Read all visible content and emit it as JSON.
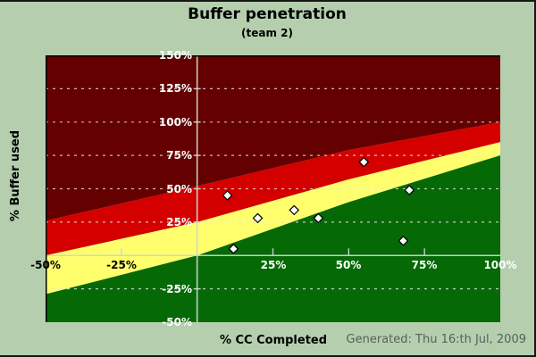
{
  "footer": {
    "generated": "Generated: Thu 16:th Jul, 2009"
  },
  "colors": {
    "background": "#b5cfae",
    "image_border": "#161616",
    "zone_green": "#056905",
    "zone_yellow": "#ffff6e",
    "zone_red": "#d40000",
    "zone_darkred": "#640000",
    "gridline": "#e2e6e2",
    "axis_line": "#ccd6cc",
    "plot_border": "#000000",
    "marker_fill": "#ffffff",
    "marker_stroke": "#000000",
    "tick_label_light": "#ffffff",
    "tick_label_dark": "#000000",
    "generated_text": "#57615a"
  },
  "chart_data": {
    "type": "scatter",
    "title": "Buffer penetration",
    "subtitle": "(team 2)",
    "xlabel": "% CC Completed",
    "ylabel": "% Buffer used",
    "xlim": [
      -50,
      100
    ],
    "ylim": [
      -50,
      150
    ],
    "grid": "horizontal-dashed",
    "marker": "diamond",
    "points": [
      {
        "x": 10,
        "y": 45
      },
      {
        "x": 12,
        "y": 5
      },
      {
        "x": 20,
        "y": 28
      },
      {
        "x": 32,
        "y": 34
      },
      {
        "x": 40,
        "y": 28
      },
      {
        "x": 55,
        "y": 70
      },
      {
        "x": 68,
        "y": 11
      },
      {
        "x": 70,
        "y": 49
      }
    ],
    "zones": [
      {
        "name": "green-ok",
        "color": "#056905"
      },
      {
        "name": "yellow-watch",
        "color": "#ffff6e"
      },
      {
        "name": "red-act",
        "color": "#d40000"
      },
      {
        "name": "darkred-danger",
        "color": "#640000"
      }
    ],
    "zone_boundaries": {
      "green_yellow": [
        [
          -50,
          -29
        ],
        [
          0,
          0
        ],
        [
          50,
          40
        ],
        [
          100,
          75
        ]
      ],
      "yellow_red": [
        [
          -50,
          0
        ],
        [
          0,
          25
        ],
        [
          50,
          57
        ],
        [
          100,
          85
        ]
      ],
      "red_darkred": [
        [
          -50,
          26
        ],
        [
          0,
          52
        ],
        [
          50,
          79
        ],
        [
          100,
          100
        ]
      ]
    },
    "y_gridlines": [
      125,
      100,
      75,
      50,
      25,
      -25
    ],
    "x_axis_ticks": [
      -25,
      25,
      50,
      75
    ],
    "y_tick_labels": [
      {
        "value": 150,
        "label": "150%",
        "color": "#ffffff"
      },
      {
        "value": 125,
        "label": "125%",
        "color": "#ffffff"
      },
      {
        "value": 100,
        "label": "100%",
        "color": "#ffffff"
      },
      {
        "value": 75,
        "label": "75%",
        "color": "#ffffff"
      },
      {
        "value": 50,
        "label": "50%",
        "color": "#ffffff"
      },
      {
        "value": 25,
        "label": "25%",
        "color": "#ffffff"
      },
      {
        "value": -25,
        "label": "-25%",
        "color": "#ffffff"
      },
      {
        "value": -50,
        "label": "-50%",
        "color": "#ffffff"
      }
    ],
    "x_tick_labels": [
      {
        "value": -50,
        "label": "-50%",
        "color": "#000000"
      },
      {
        "value": -25,
        "label": "-25%",
        "color": "#000000"
      },
      {
        "value": 25,
        "label": "25%",
        "color": "#ffffff"
      },
      {
        "value": 50,
        "label": "50%",
        "color": "#ffffff"
      },
      {
        "value": 75,
        "label": "75%",
        "color": "#ffffff"
      },
      {
        "value": 100,
        "label": "100%",
        "color": "#ffffff"
      }
    ]
  }
}
